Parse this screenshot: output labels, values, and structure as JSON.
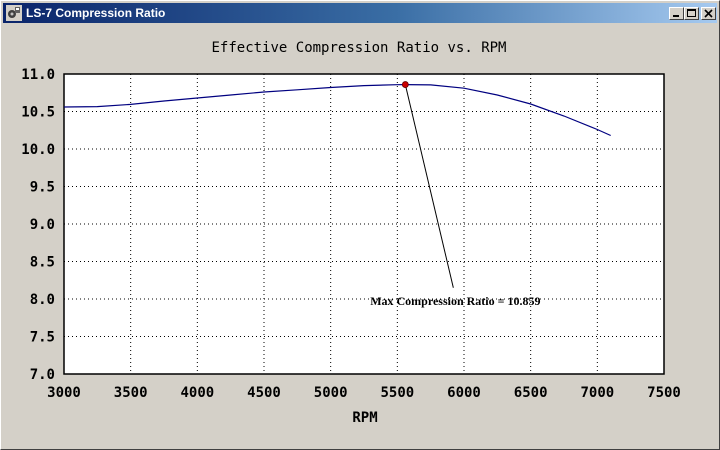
{
  "window": {
    "title": "LS-7 Compression Ratio",
    "icon": "app-icon"
  },
  "chart_data": {
    "type": "line",
    "title": "Effective Compression Ratio vs. RPM",
    "xlabel": "RPM",
    "ylabel": "",
    "xlim": [
      3000,
      7500
    ],
    "ylim": [
      7.0,
      11.0
    ],
    "xticks": [
      3000,
      3500,
      4000,
      4500,
      5000,
      5500,
      6000,
      6500,
      7000,
      7500
    ],
    "yticks": [
      "7.0",
      "7.5",
      "8.0",
      "8.5",
      "9.0",
      "9.5",
      "10.0",
      "10.5",
      "11.0"
    ],
    "grid": true,
    "series": [
      {
        "x": [
          3000,
          3250,
          3500,
          3750,
          4000,
          4250,
          4500,
          4750,
          5000,
          5250,
          5500,
          5560,
          5750,
          6000,
          6250,
          6500,
          6750,
          7000,
          7100
        ],
        "y": [
          10.56,
          10.565,
          10.595,
          10.64,
          10.68,
          10.72,
          10.76,
          10.79,
          10.82,
          10.845,
          10.857,
          10.859,
          10.855,
          10.81,
          10.72,
          10.6,
          10.44,
          10.26,
          10.18
        ],
        "color": "#000080"
      }
    ],
    "annotation": {
      "text": "Max Compression Ratio = 10.859",
      "point": {
        "x": 5560,
        "y": 10.859
      },
      "leader_to": {
        "x": 5920,
        "y": 8.15
      },
      "marker_color": "#cc0000"
    },
    "colors": {
      "plot_bg": "#ffffff",
      "frame": "#000000",
      "line": "#000080"
    }
  }
}
